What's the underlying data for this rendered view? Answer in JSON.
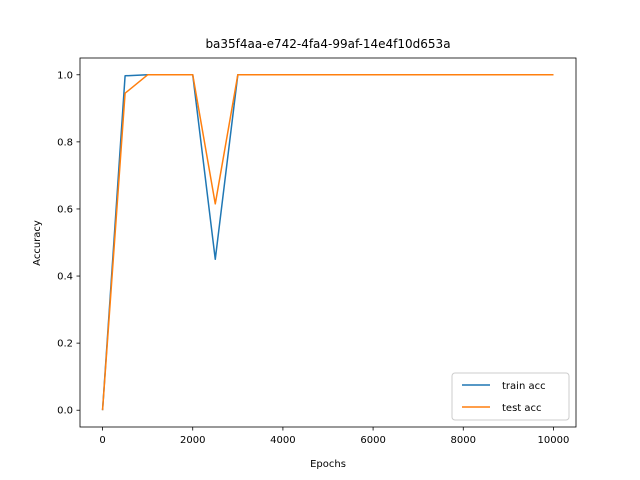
{
  "chart_data": {
    "type": "line",
    "title": "ba35f4aa-e742-4fa4-99af-14e4f10d653a",
    "xlabel": "Epochs",
    "ylabel": "Accuracy",
    "xlim": [
      -500,
      10500
    ],
    "ylim": [
      -0.05,
      1.05
    ],
    "xticks": [
      0,
      2000,
      4000,
      6000,
      8000,
      10000
    ],
    "xtick_labels": [
      "0",
      "2000",
      "4000",
      "6000",
      "8000",
      "10000"
    ],
    "yticks": [
      0.0,
      0.2,
      0.4,
      0.6,
      0.8,
      1.0
    ],
    "ytick_labels": [
      "0.0",
      "0.2",
      "0.4",
      "0.6",
      "0.8",
      "1.0"
    ],
    "grid": false,
    "legend_position": "lower-right",
    "x": [
      0,
      500,
      1000,
      1500,
      2000,
      2500,
      3000,
      3500,
      4000,
      4500,
      5000,
      5500,
      6000,
      6500,
      7000,
      7500,
      8000,
      8500,
      9000,
      9500,
      10000
    ],
    "series": [
      {
        "name": "train acc",
        "color": "#1f77b4",
        "values": [
          0.0,
          0.997,
          1.0,
          1.0,
          1.0,
          0.45,
          1.0,
          1.0,
          1.0,
          1.0,
          1.0,
          1.0,
          1.0,
          1.0,
          1.0,
          1.0,
          1.0,
          1.0,
          1.0,
          1.0,
          1.0
        ]
      },
      {
        "name": "test acc",
        "color": "#ff7f0e",
        "values": [
          0.0,
          0.945,
          1.0,
          1.0,
          1.0,
          0.615,
          1.0,
          1.0,
          1.0,
          1.0,
          1.0,
          1.0,
          1.0,
          1.0,
          1.0,
          1.0,
          1.0,
          1.0,
          1.0,
          1.0,
          1.0
        ]
      }
    ]
  }
}
